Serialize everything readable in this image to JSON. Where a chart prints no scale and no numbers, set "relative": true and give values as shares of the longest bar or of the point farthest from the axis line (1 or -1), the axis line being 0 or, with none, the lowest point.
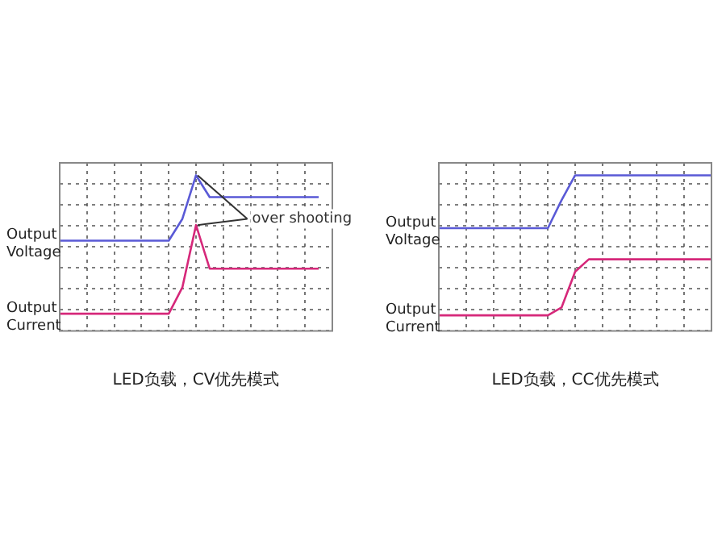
{
  "chart_data": [
    {
      "type": "line",
      "relative": true,
      "xlabel": "LED负载，CV优先模式",
      "categories": [
        null,
        null,
        null,
        null,
        null,
        null,
        null,
        null,
        null,
        null,
        null,
        null,
        null,
        null,
        null,
        null,
        null,
        null,
        null,
        null,
        null
      ],
      "grid": true,
      "legend": false,
      "marker": "none",
      "line_style": "solid",
      "annotations": [
        "over shooting"
      ],
      "series": [
        {
          "name": "Output Voltage",
          "color": "#5a5ad6",
          "values": [
            0.58,
            0.58,
            0.58,
            0.58,
            0.58,
            0.58,
            0.58,
            0.58,
            0.58,
            0.72,
            1,
            0.86,
            0.86,
            0.86,
            0.86,
            0.86,
            0.86,
            0.86,
            0.86,
            0.86,
            null
          ]
        },
        {
          "name": "Output Current",
          "color": "#d6287a",
          "values": [
            0.11,
            0.11,
            0.11,
            0.11,
            0.11,
            0.11,
            0.11,
            0.11,
            0.11,
            0.28,
            0.68,
            0.4,
            0.4,
            0.4,
            0.4,
            0.4,
            0.4,
            0.4,
            0.4,
            0.4,
            null
          ]
        }
      ]
    },
    {
      "type": "line",
      "relative": true,
      "xlabel": "LED负载，CC优先模式",
      "categories": [
        null,
        null,
        null,
        null,
        null,
        null,
        null,
        null,
        null,
        null,
        null,
        null,
        null,
        null,
        null,
        null,
        null,
        null,
        null,
        null,
        null
      ],
      "grid": true,
      "legend": false,
      "marker": "none",
      "line_style": "solid",
      "series": [
        {
          "name": "Output Voltage",
          "color": "#5a5ad6",
          "values": [
            0.66,
            0.66,
            0.66,
            0.66,
            0.66,
            0.66,
            0.66,
            0.66,
            0.66,
            0.84,
            1,
            1,
            1,
            1,
            1,
            1,
            1,
            1,
            1,
            1,
            1
          ]
        },
        {
          "name": "Output Current",
          "color": "#d6287a",
          "values": [
            0.1,
            0.1,
            0.1,
            0.1,
            0.1,
            0.1,
            0.1,
            0.1,
            0.1,
            0.15,
            0.38,
            0.46,
            0.46,
            0.46,
            0.46,
            0.46,
            0.46,
            0.46,
            0.46,
            0.46,
            0.46
          ]
        }
      ]
    }
  ]
}
